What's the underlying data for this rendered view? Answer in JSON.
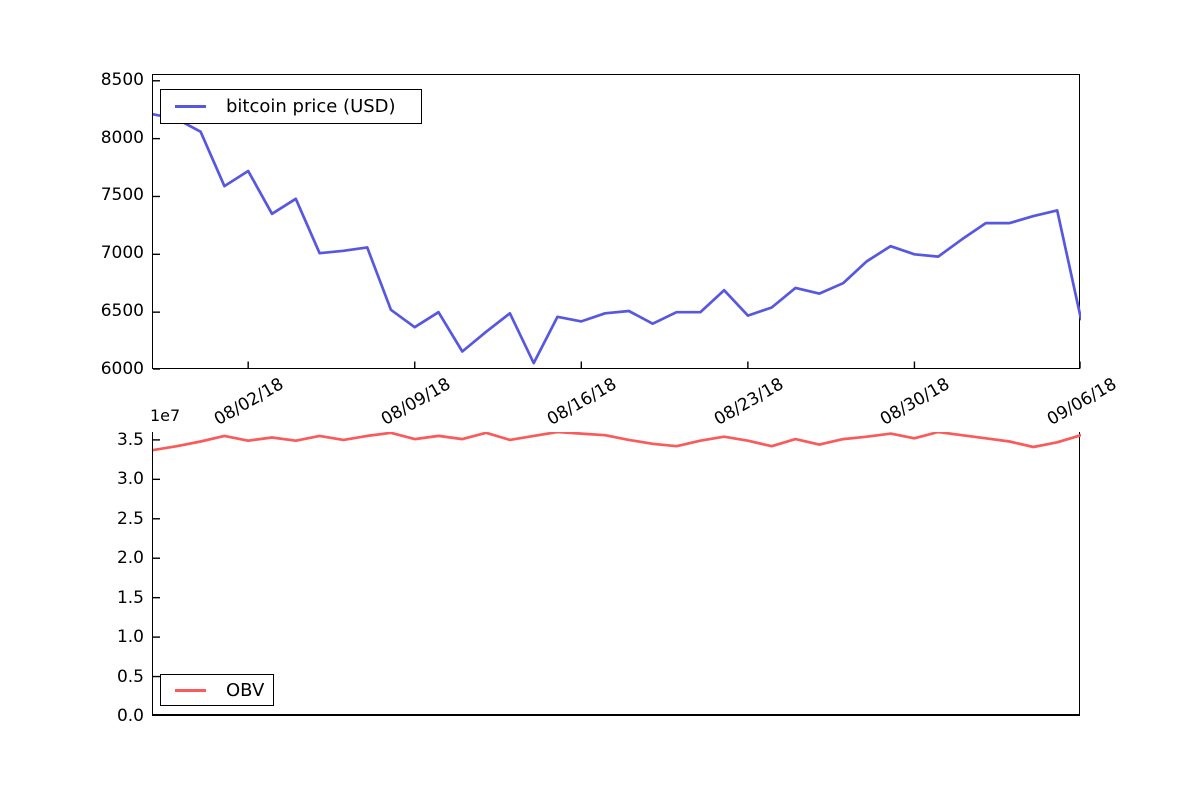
{
  "figure": {
    "background": "#ffffff"
  },
  "chart_data": [
    {
      "id": "price",
      "type": "line",
      "title": "",
      "xlabel": "",
      "ylabel": "",
      "grid": false,
      "legend": {
        "label": "bitcoin price (USD)",
        "position": "upper-left"
      },
      "ylim": [
        6000,
        8550
      ],
      "y_tick_values": [
        6000,
        6500,
        7000,
        7500,
        8000,
        8500
      ],
      "y_tick_labels": [
        "6000",
        "6500",
        "7000",
        "7500",
        "8000",
        "8500"
      ],
      "x_tick_indices": [
        4,
        11,
        18,
        25,
        32,
        39
      ],
      "x_tick_labels": [
        "08/02/18",
        "08/09/18",
        "08/16/18",
        "08/23/18",
        "08/30/18",
        "09/06/18"
      ],
      "series": [
        {
          "name": "bitcoin price (USD)",
          "color": "#5757E0",
          "values": [
            8210,
            8170,
            8060,
            7590,
            7720,
            7350,
            7480,
            7010,
            7030,
            7060,
            6520,
            6370,
            6500,
            6160,
            6330,
            6490,
            6060,
            6460,
            6420,
            6490,
            6510,
            6400,
            6500,
            6500,
            6690,
            6470,
            6540,
            6710,
            6660,
            6750,
            6940,
            7070,
            7000,
            6980,
            7130,
            7270,
            7270,
            7330,
            7380,
            6440
          ]
        }
      ]
    },
    {
      "id": "obv",
      "type": "line",
      "title": "",
      "xlabel": "",
      "ylabel": "",
      "grid": false,
      "legend": {
        "label": "OBV",
        "position": "lower-left"
      },
      "unit_offset_label": "1e7",
      "ylim": [
        0,
        3.6
      ],
      "y_tick_values": [
        0.0,
        0.5,
        1.0,
        1.5,
        2.0,
        2.5,
        3.0,
        3.5
      ],
      "y_tick_labels": [
        "0.0",
        "0.5",
        "1.0",
        "1.5",
        "2.0",
        "2.5",
        "3.0",
        "3.5"
      ],
      "x_tick_indices": [],
      "x_tick_labels": [],
      "series": [
        {
          "name": "OBV",
          "color": "#FA5A5A",
          "values": [
            3.37,
            3.42,
            3.48,
            3.55,
            3.49,
            3.53,
            3.49,
            3.55,
            3.5,
            3.55,
            3.59,
            3.51,
            3.55,
            3.51,
            3.59,
            3.5,
            3.55,
            3.6,
            3.58,
            3.56,
            3.5,
            3.45,
            3.42,
            3.49,
            3.54,
            3.49,
            3.42,
            3.51,
            3.44,
            3.51,
            3.54,
            3.58,
            3.52,
            3.6,
            3.56,
            3.52,
            3.48,
            3.41,
            3.47,
            3.56
          ]
        }
      ]
    }
  ]
}
